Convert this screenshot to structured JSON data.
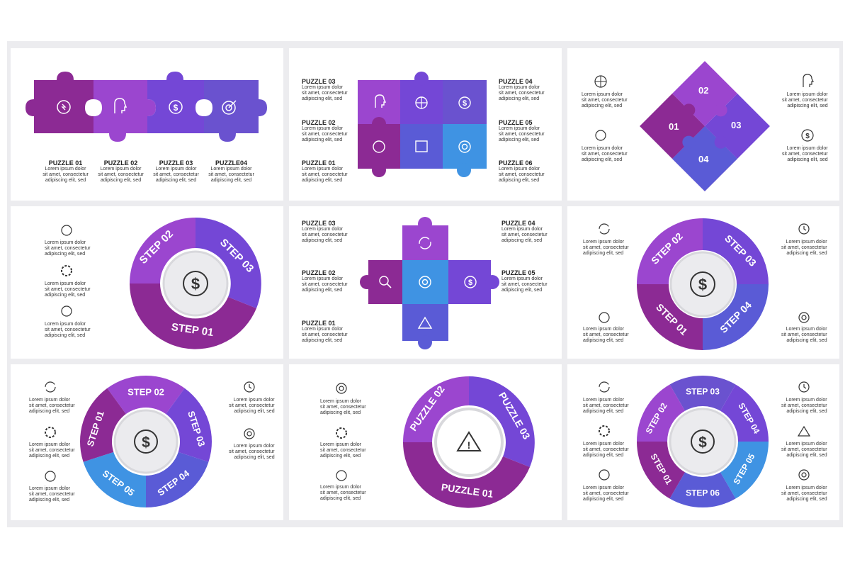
{
  "lorem": "Lorem ipsum dolor\nsit amet, consectetur\nadipiscing elit, sed",
  "colors": {
    "p1": "#8c2a94",
    "p2": "#9b46cf",
    "p3": "#7447d6",
    "p4": "#6a52cf",
    "p5": "#5a5bd6",
    "blue": "#3f93e3"
  },
  "panel1": {
    "labels": [
      "PUZZLE 01",
      "PUZZLE 02",
      "PUZZLE 03",
      "PUZZLE04"
    ]
  },
  "panel2": {
    "left": [
      "PUZZLE 03",
      "PUZZLE 02",
      "PUZZLE 01"
    ],
    "right": [
      "PUZZLE 04",
      "PUZZLE 05",
      "PUZZLE 06"
    ]
  },
  "panel3": {
    "pieces": [
      "01",
      "02",
      "03",
      "04"
    ]
  },
  "panel4": {
    "steps": [
      "STEP 02",
      "STEP 03",
      "STEP 01"
    ],
    "center": "$"
  },
  "panel5": {
    "left": [
      "PUZZLE 03",
      "PUZZLE 02",
      "PUZZLE 01"
    ],
    "right": [
      "PUZZLE 04",
      "PUZZLE 05"
    ]
  },
  "panel6": {
    "steps": [
      "STEP 02",
      "STEP 03",
      "STEP 01",
      "STEP 04"
    ],
    "center": "$"
  },
  "panel7": {
    "steps": [
      "STEP 02",
      "STEP 03",
      "STEP 01",
      "STEP 04",
      "STEP 05"
    ],
    "center": "$"
  },
  "panel8": {
    "pieces": [
      "PUZZLE 02",
      "PUZZLE 03",
      "PUZZLE 01"
    ],
    "center": "!"
  },
  "panel9": {
    "steps": [
      "STEP 03",
      "STEP 04",
      "STEP 02",
      "STEP 05",
      "STEP 01",
      "STEP 06"
    ],
    "center": "$"
  }
}
